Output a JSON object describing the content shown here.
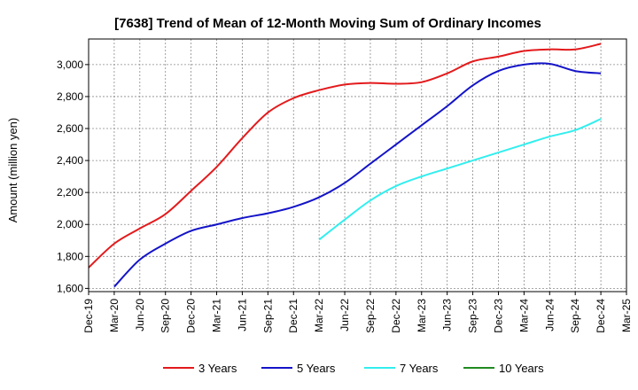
{
  "chart_data": {
    "type": "line",
    "title": "[7638]  Trend of Mean of 12-Month Moving Sum of Ordinary Incomes",
    "xlabel": "",
    "ylabel": "Amount (million yen)",
    "ylim": [
      1580,
      3160
    ],
    "yticks": [
      1600,
      1800,
      2000,
      2200,
      2400,
      2600,
      2800,
      3000
    ],
    "ytick_labels": [
      "1,600",
      "1,800",
      "2,000",
      "2,200",
      "2,400",
      "2,600",
      "2,800",
      "3,000"
    ],
    "categories": [
      "Dec-19",
      "Mar-20",
      "Jun-20",
      "Sep-20",
      "Dec-20",
      "Mar-21",
      "Jun-21",
      "Sep-21",
      "Dec-21",
      "Mar-22",
      "Jun-22",
      "Sep-22",
      "Dec-22",
      "Mar-23",
      "Jun-23",
      "Sep-23",
      "Dec-23",
      "Mar-24",
      "Jun-24",
      "Sep-24",
      "Dec-24",
      "Mar-25"
    ],
    "grid": true,
    "legend_position": "bottom",
    "series": [
      {
        "name": "3 Years",
        "color": "#e31a1c",
        "values": [
          1730,
          1880,
          1975,
          2065,
          2210,
          2360,
          2540,
          2700,
          2790,
          2840,
          2875,
          2885,
          2880,
          2890,
          2945,
          3020,
          3050,
          3085,
          3095,
          3095,
          3130,
          null
        ]
      },
      {
        "name": "5 Years",
        "color": "#1414c8",
        "values": [
          null,
          1610,
          1780,
          1880,
          1960,
          2000,
          2040,
          2070,
          2110,
          2170,
          2260,
          2380,
          2500,
          2620,
          2740,
          2870,
          2960,
          3000,
          3005,
          2960,
          2945,
          null
        ]
      },
      {
        "name": "7 Years",
        "color": "#33eeee",
        "values": [
          null,
          null,
          null,
          null,
          null,
          null,
          null,
          null,
          null,
          1905,
          2030,
          2150,
          2240,
          2300,
          2350,
          2400,
          2450,
          2500,
          2550,
          2590,
          2660,
          null
        ]
      },
      {
        "name": "10 Years",
        "color": "#1f8a1f",
        "values": [
          null,
          null,
          null,
          null,
          null,
          null,
          null,
          null,
          null,
          null,
          null,
          null,
          null,
          null,
          null,
          null,
          null,
          null,
          null,
          null,
          null,
          null
        ]
      }
    ]
  }
}
